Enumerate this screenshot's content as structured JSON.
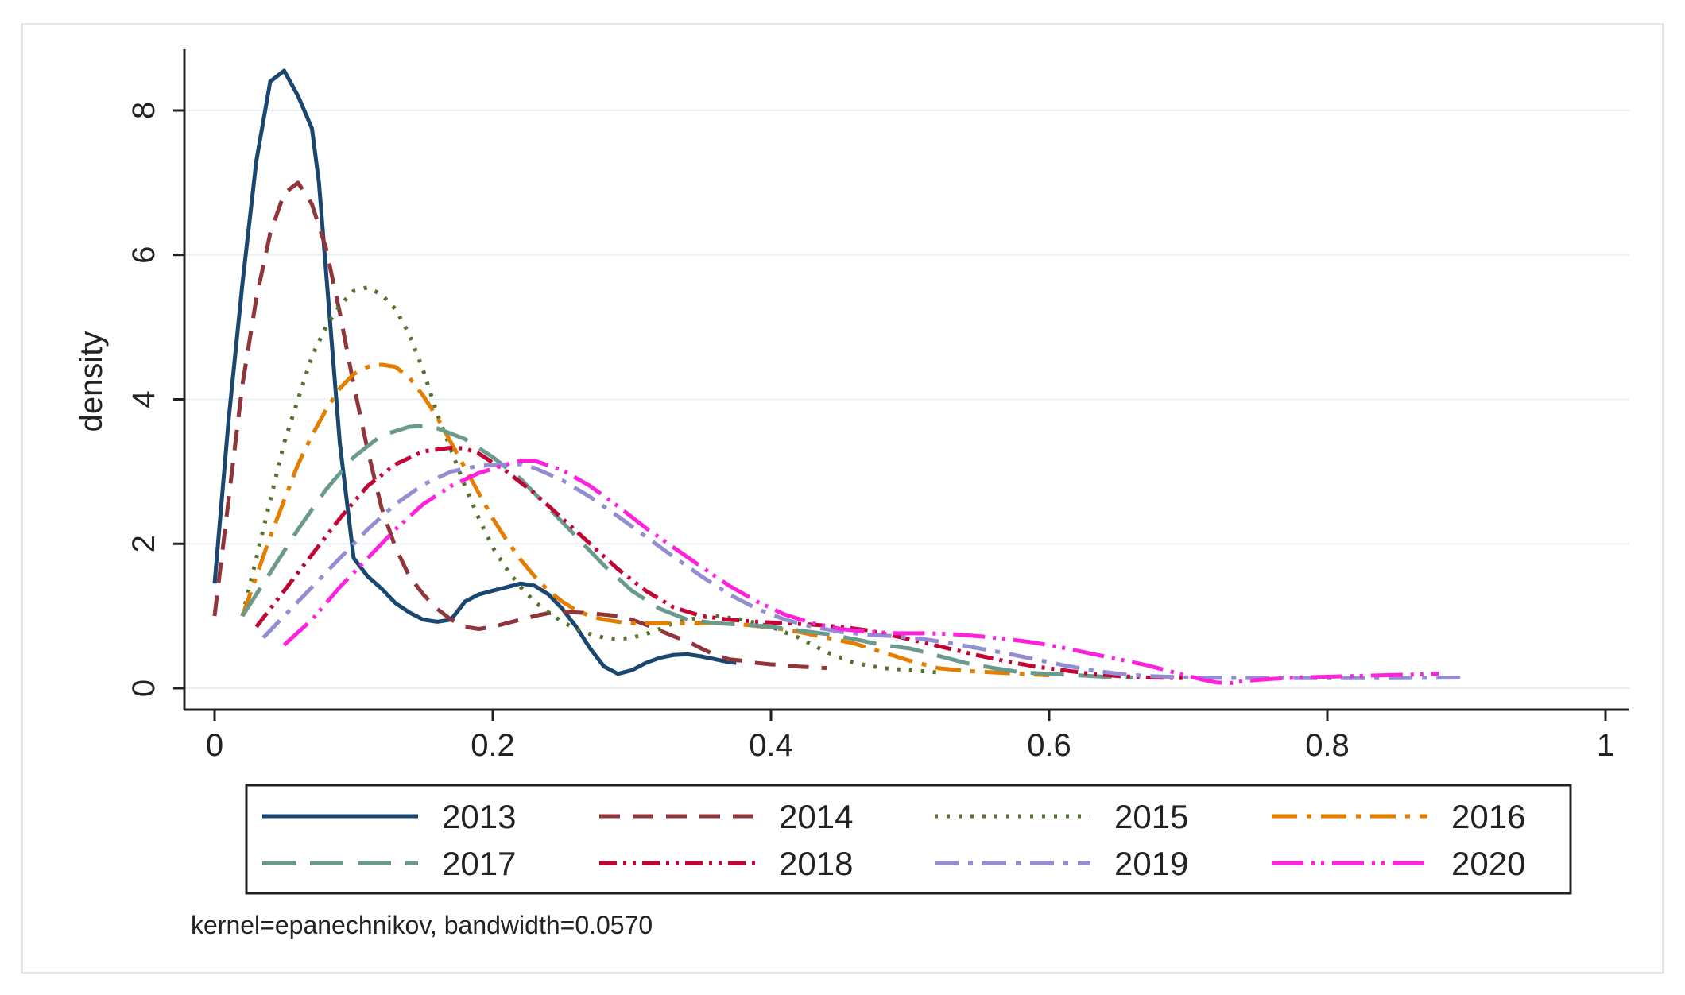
{
  "chart_data": {
    "type": "line",
    "title": "",
    "xlabel": "",
    "ylabel": "density",
    "xlim": [
      0,
      1
    ],
    "ylim": [
      0,
      8.5
    ],
    "xticks": [
      0,
      0.2,
      0.4,
      0.6,
      0.8,
      1
    ],
    "xtick_labels": [
      "0",
      "0.2",
      "0.4",
      "0.6",
      "0.8",
      "1"
    ],
    "yticks": [
      0,
      2,
      4,
      6,
      8
    ],
    "ytick_labels": [
      "0",
      "2",
      "4",
      "6",
      "8"
    ],
    "grid": true,
    "legend_position": "bottom",
    "note": "kernel=epanechnikov, bandwidth=0.0570",
    "series": [
      {
        "name": "2013",
        "color": "#1a476f",
        "dash": "solid",
        "x": [
          0,
          0.01,
          0.02,
          0.03,
          0.04,
          0.05,
          0.06,
          0.07,
          0.075,
          0.08,
          0.09,
          0.1,
          0.11,
          0.12,
          0.13,
          0.14,
          0.15,
          0.16,
          0.17,
          0.18,
          0.19,
          0.2,
          0.21,
          0.22,
          0.23,
          0.24,
          0.25,
          0.26,
          0.27,
          0.28,
          0.29,
          0.3,
          0.31,
          0.32,
          0.33,
          0.34,
          0.35,
          0.36,
          0.37,
          0.375
        ],
        "y": [
          1.45,
          3.7,
          5.6,
          7.3,
          8.4,
          8.55,
          8.2,
          7.75,
          7.0,
          5.8,
          3.4,
          1.8,
          1.55,
          1.38,
          1.18,
          1.05,
          0.95,
          0.92,
          0.95,
          1.2,
          1.3,
          1.35,
          1.4,
          1.45,
          1.42,
          1.3,
          1.1,
          0.85,
          0.55,
          0.3,
          0.2,
          0.25,
          0.35,
          0.42,
          0.46,
          0.47,
          0.44,
          0.4,
          0.36,
          0.35
        ]
      },
      {
        "name": "2014",
        "color": "#90353b",
        "dash": "long-dash",
        "x": [
          0,
          0.01,
          0.02,
          0.03,
          0.04,
          0.05,
          0.06,
          0.07,
          0.08,
          0.09,
          0.1,
          0.11,
          0.12,
          0.13,
          0.14,
          0.15,
          0.16,
          0.17,
          0.18,
          0.19,
          0.2,
          0.21,
          0.22,
          0.23,
          0.24,
          0.25,
          0.26,
          0.27,
          0.28,
          0.29,
          0.3,
          0.31,
          0.32,
          0.33,
          0.34,
          0.35,
          0.36,
          0.37,
          0.38,
          0.39,
          0.4,
          0.41,
          0.42,
          0.43,
          0.44
        ],
        "y": [
          1.0,
          2.6,
          4.2,
          5.4,
          6.3,
          6.85,
          7.0,
          6.7,
          6.1,
          5.2,
          4.2,
          3.3,
          2.5,
          1.95,
          1.55,
          1.3,
          1.1,
          0.95,
          0.85,
          0.82,
          0.85,
          0.9,
          0.95,
          1.0,
          1.04,
          1.06,
          1.05,
          1.04,
          1.02,
          1.0,
          0.95,
          0.88,
          0.8,
          0.72,
          0.65,
          0.55,
          0.46,
          0.4,
          0.38,
          0.35,
          0.33,
          0.32,
          0.3,
          0.29,
          0.28
        ]
      },
      {
        "name": "2015",
        "color": "#55752f",
        "dash": "dot",
        "x": [
          0.02,
          0.03,
          0.04,
          0.05,
          0.06,
          0.07,
          0.08,
          0.09,
          0.1,
          0.11,
          0.12,
          0.13,
          0.14,
          0.15,
          0.16,
          0.17,
          0.18,
          0.19,
          0.2,
          0.21,
          0.22,
          0.23,
          0.24,
          0.25,
          0.26,
          0.27,
          0.28,
          0.29,
          0.3,
          0.31,
          0.32,
          0.33,
          0.34,
          0.35,
          0.36,
          0.38,
          0.4,
          0.42,
          0.44,
          0.46,
          0.48,
          0.5,
          0.52
        ],
        "y": [
          1.0,
          1.8,
          2.6,
          3.4,
          4.0,
          4.6,
          5.0,
          5.3,
          5.5,
          5.55,
          5.45,
          5.25,
          4.9,
          4.4,
          3.8,
          3.3,
          2.8,
          2.35,
          1.95,
          1.65,
          1.4,
          1.2,
          1.05,
          0.92,
          0.82,
          0.75,
          0.7,
          0.68,
          0.7,
          0.75,
          0.82,
          0.9,
          0.95,
          0.98,
          1.0,
          0.95,
          0.85,
          0.7,
          0.5,
          0.35,
          0.28,
          0.25,
          0.22
        ]
      },
      {
        "name": "2016",
        "color": "#e37e00",
        "dash": "dash-dot",
        "x": [
          0.02,
          0.03,
          0.04,
          0.05,
          0.06,
          0.07,
          0.08,
          0.09,
          0.1,
          0.11,
          0.12,
          0.13,
          0.14,
          0.15,
          0.16,
          0.17,
          0.18,
          0.19,
          0.2,
          0.21,
          0.22,
          0.23,
          0.24,
          0.25,
          0.26,
          0.27,
          0.28,
          0.29,
          0.3,
          0.32,
          0.34,
          0.36,
          0.38,
          0.4,
          0.42,
          0.44,
          0.46,
          0.48,
          0.5,
          0.52,
          0.54,
          0.56,
          0.58,
          0.6
        ],
        "y": [
          1.0,
          1.55,
          2.1,
          2.6,
          3.1,
          3.5,
          3.85,
          4.15,
          4.35,
          4.45,
          4.48,
          4.45,
          4.3,
          4.05,
          3.75,
          3.4,
          3.05,
          2.7,
          2.35,
          2.05,
          1.78,
          1.55,
          1.35,
          1.2,
          1.08,
          1.0,
          0.95,
          0.92,
          0.9,
          0.9,
          0.9,
          0.9,
          0.88,
          0.84,
          0.78,
          0.7,
          0.62,
          0.5,
          0.38,
          0.28,
          0.24,
          0.22,
          0.2,
          0.18
        ]
      },
      {
        "name": "2017",
        "color": "#6a9a8d",
        "dash": "long-dash-wide",
        "x": [
          0.02,
          0.04,
          0.06,
          0.08,
          0.1,
          0.12,
          0.14,
          0.15,
          0.16,
          0.18,
          0.2,
          0.22,
          0.24,
          0.26,
          0.28,
          0.3,
          0.32,
          0.34,
          0.36,
          0.38,
          0.4,
          0.42,
          0.44,
          0.46,
          0.48,
          0.5,
          0.52,
          0.54,
          0.56,
          0.58,
          0.6,
          0.62,
          0.64,
          0.66
        ],
        "y": [
          1.0,
          1.6,
          2.2,
          2.75,
          3.2,
          3.5,
          3.62,
          3.63,
          3.6,
          3.45,
          3.2,
          2.9,
          2.5,
          2.1,
          1.7,
          1.35,
          1.1,
          0.95,
          0.9,
          0.88,
          0.85,
          0.8,
          0.75,
          0.68,
          0.6,
          0.55,
          0.45,
          0.35,
          0.28,
          0.22,
          0.2,
          0.18,
          0.16,
          0.15
        ]
      },
      {
        "name": "2018",
        "color": "#c10534",
        "dash": "dash-dot-dot",
        "x": [
          0.03,
          0.05,
          0.07,
          0.09,
          0.11,
          0.13,
          0.15,
          0.17,
          0.18,
          0.19,
          0.21,
          0.23,
          0.25,
          0.27,
          0.29,
          0.31,
          0.33,
          0.35,
          0.37,
          0.39,
          0.41,
          0.43,
          0.45,
          0.47,
          0.49,
          0.51,
          0.53,
          0.55,
          0.57,
          0.59,
          0.61,
          0.63,
          0.65,
          0.67,
          0.7
        ],
        "y": [
          0.85,
          1.35,
          1.85,
          2.35,
          2.8,
          3.1,
          3.28,
          3.33,
          3.32,
          3.25,
          3.0,
          2.7,
          2.35,
          2.0,
          1.65,
          1.35,
          1.12,
          1.0,
          0.95,
          0.92,
          0.9,
          0.88,
          0.85,
          0.8,
          0.72,
          0.63,
          0.54,
          0.45,
          0.37,
          0.3,
          0.25,
          0.2,
          0.17,
          0.15,
          0.14
        ]
      },
      {
        "name": "2019",
        "color": "#938dd2",
        "dash": "dash-dot-long",
        "x": [
          0.035,
          0.05,
          0.07,
          0.09,
          0.11,
          0.13,
          0.15,
          0.17,
          0.19,
          0.21,
          0.22,
          0.23,
          0.25,
          0.27,
          0.29,
          0.31,
          0.33,
          0.35,
          0.37,
          0.39,
          0.41,
          0.43,
          0.45,
          0.47,
          0.49,
          0.51,
          0.53,
          0.55,
          0.57,
          0.59,
          0.61,
          0.63,
          0.65,
          0.67,
          0.7,
          0.75,
          0.8,
          0.85,
          0.9
        ],
        "y": [
          0.7,
          1.0,
          1.4,
          1.8,
          2.2,
          2.55,
          2.82,
          3.0,
          3.08,
          3.1,
          3.1,
          3.05,
          2.88,
          2.65,
          2.38,
          2.1,
          1.82,
          1.55,
          1.3,
          1.1,
          0.95,
          0.85,
          0.78,
          0.74,
          0.72,
          0.68,
          0.62,
          0.55,
          0.48,
          0.4,
          0.32,
          0.25,
          0.2,
          0.17,
          0.15,
          0.14,
          0.14,
          0.14,
          0.15
        ]
      },
      {
        "name": "2020",
        "color": "#ff22dd",
        "dash": "long-dash-dot-dot",
        "x": [
          0.05,
          0.07,
          0.09,
          0.11,
          0.13,
          0.15,
          0.17,
          0.19,
          0.21,
          0.22,
          0.23,
          0.25,
          0.27,
          0.29,
          0.31,
          0.33,
          0.35,
          0.37,
          0.39,
          0.41,
          0.43,
          0.45,
          0.47,
          0.49,
          0.51,
          0.53,
          0.55,
          0.57,
          0.59,
          0.61,
          0.63,
          0.65,
          0.67,
          0.69,
          0.71,
          0.72,
          0.73,
          0.74,
          0.76,
          0.78,
          0.8,
          0.82,
          0.84,
          0.86,
          0.88
        ],
        "y": [
          0.6,
          0.95,
          1.4,
          1.8,
          2.2,
          2.55,
          2.8,
          2.98,
          3.1,
          3.15,
          3.15,
          3.02,
          2.8,
          2.52,
          2.22,
          1.95,
          1.68,
          1.42,
          1.2,
          1.02,
          0.9,
          0.82,
          0.78,
          0.76,
          0.76,
          0.75,
          0.72,
          0.68,
          0.63,
          0.56,
          0.48,
          0.4,
          0.32,
          0.22,
          0.12,
          0.08,
          0.07,
          0.1,
          0.13,
          0.15,
          0.16,
          0.17,
          0.18,
          0.19,
          0.2
        ]
      }
    ]
  }
}
